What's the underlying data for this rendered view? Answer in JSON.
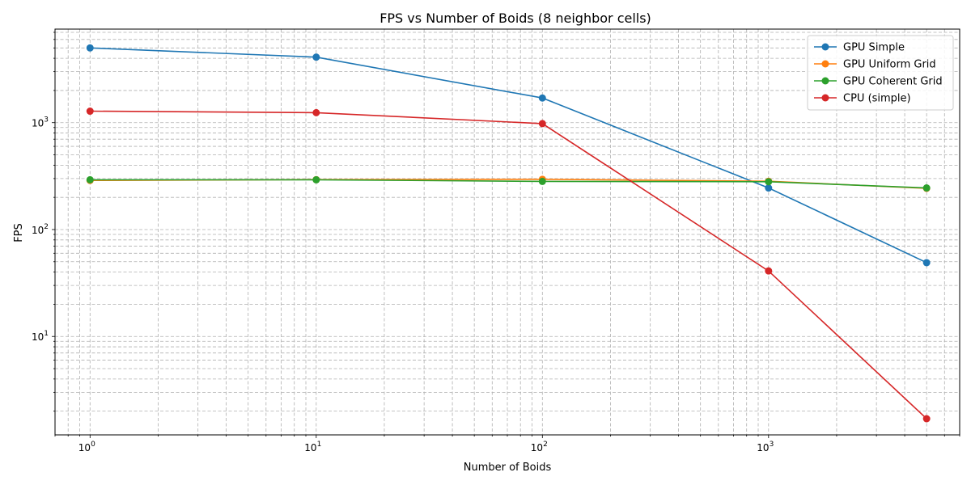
{
  "chart_data": {
    "type": "line",
    "title": "FPS vs Number of Boids (8 neighbor cells)",
    "xlabel": "Number of Boids",
    "ylabel": "FPS",
    "xscale": "log",
    "yscale": "log",
    "xlim": [
      0.7,
      7000
    ],
    "ylim": [
      1.2,
      7500
    ],
    "grid": true,
    "legend_position": "top-right",
    "x": [
      1,
      10,
      100,
      1000,
      5000
    ],
    "x_tick_labels": [
      {
        "base": "10",
        "exp": "0"
      },
      {
        "base": "10",
        "exp": "1"
      },
      {
        "base": "10",
        "exp": "2"
      },
      {
        "base": "10",
        "exp": "3"
      }
    ],
    "y_tick_labels": [
      {
        "base": "10",
        "exp": "1"
      },
      {
        "base": "10",
        "exp": "2"
      },
      {
        "base": "10",
        "exp": "3"
      }
    ],
    "series": [
      {
        "name": "GPU Simple",
        "color": "#1f77b4",
        "values": [
          5000,
          4100,
          1700,
          245,
          49
        ]
      },
      {
        "name": "GPU Uniform Grid",
        "color": "#ff7f0e",
        "values": [
          288,
          293,
          295,
          283,
          243
        ]
      },
      {
        "name": "GPU Coherent Grid",
        "color": "#2ca02c",
        "values": [
          292,
          292,
          282,
          280,
          245
        ]
      },
      {
        "name": "CPU (simple)",
        "color": "#d62728",
        "values": [
          1280,
          1240,
          980,
          41,
          1.7
        ]
      }
    ]
  }
}
